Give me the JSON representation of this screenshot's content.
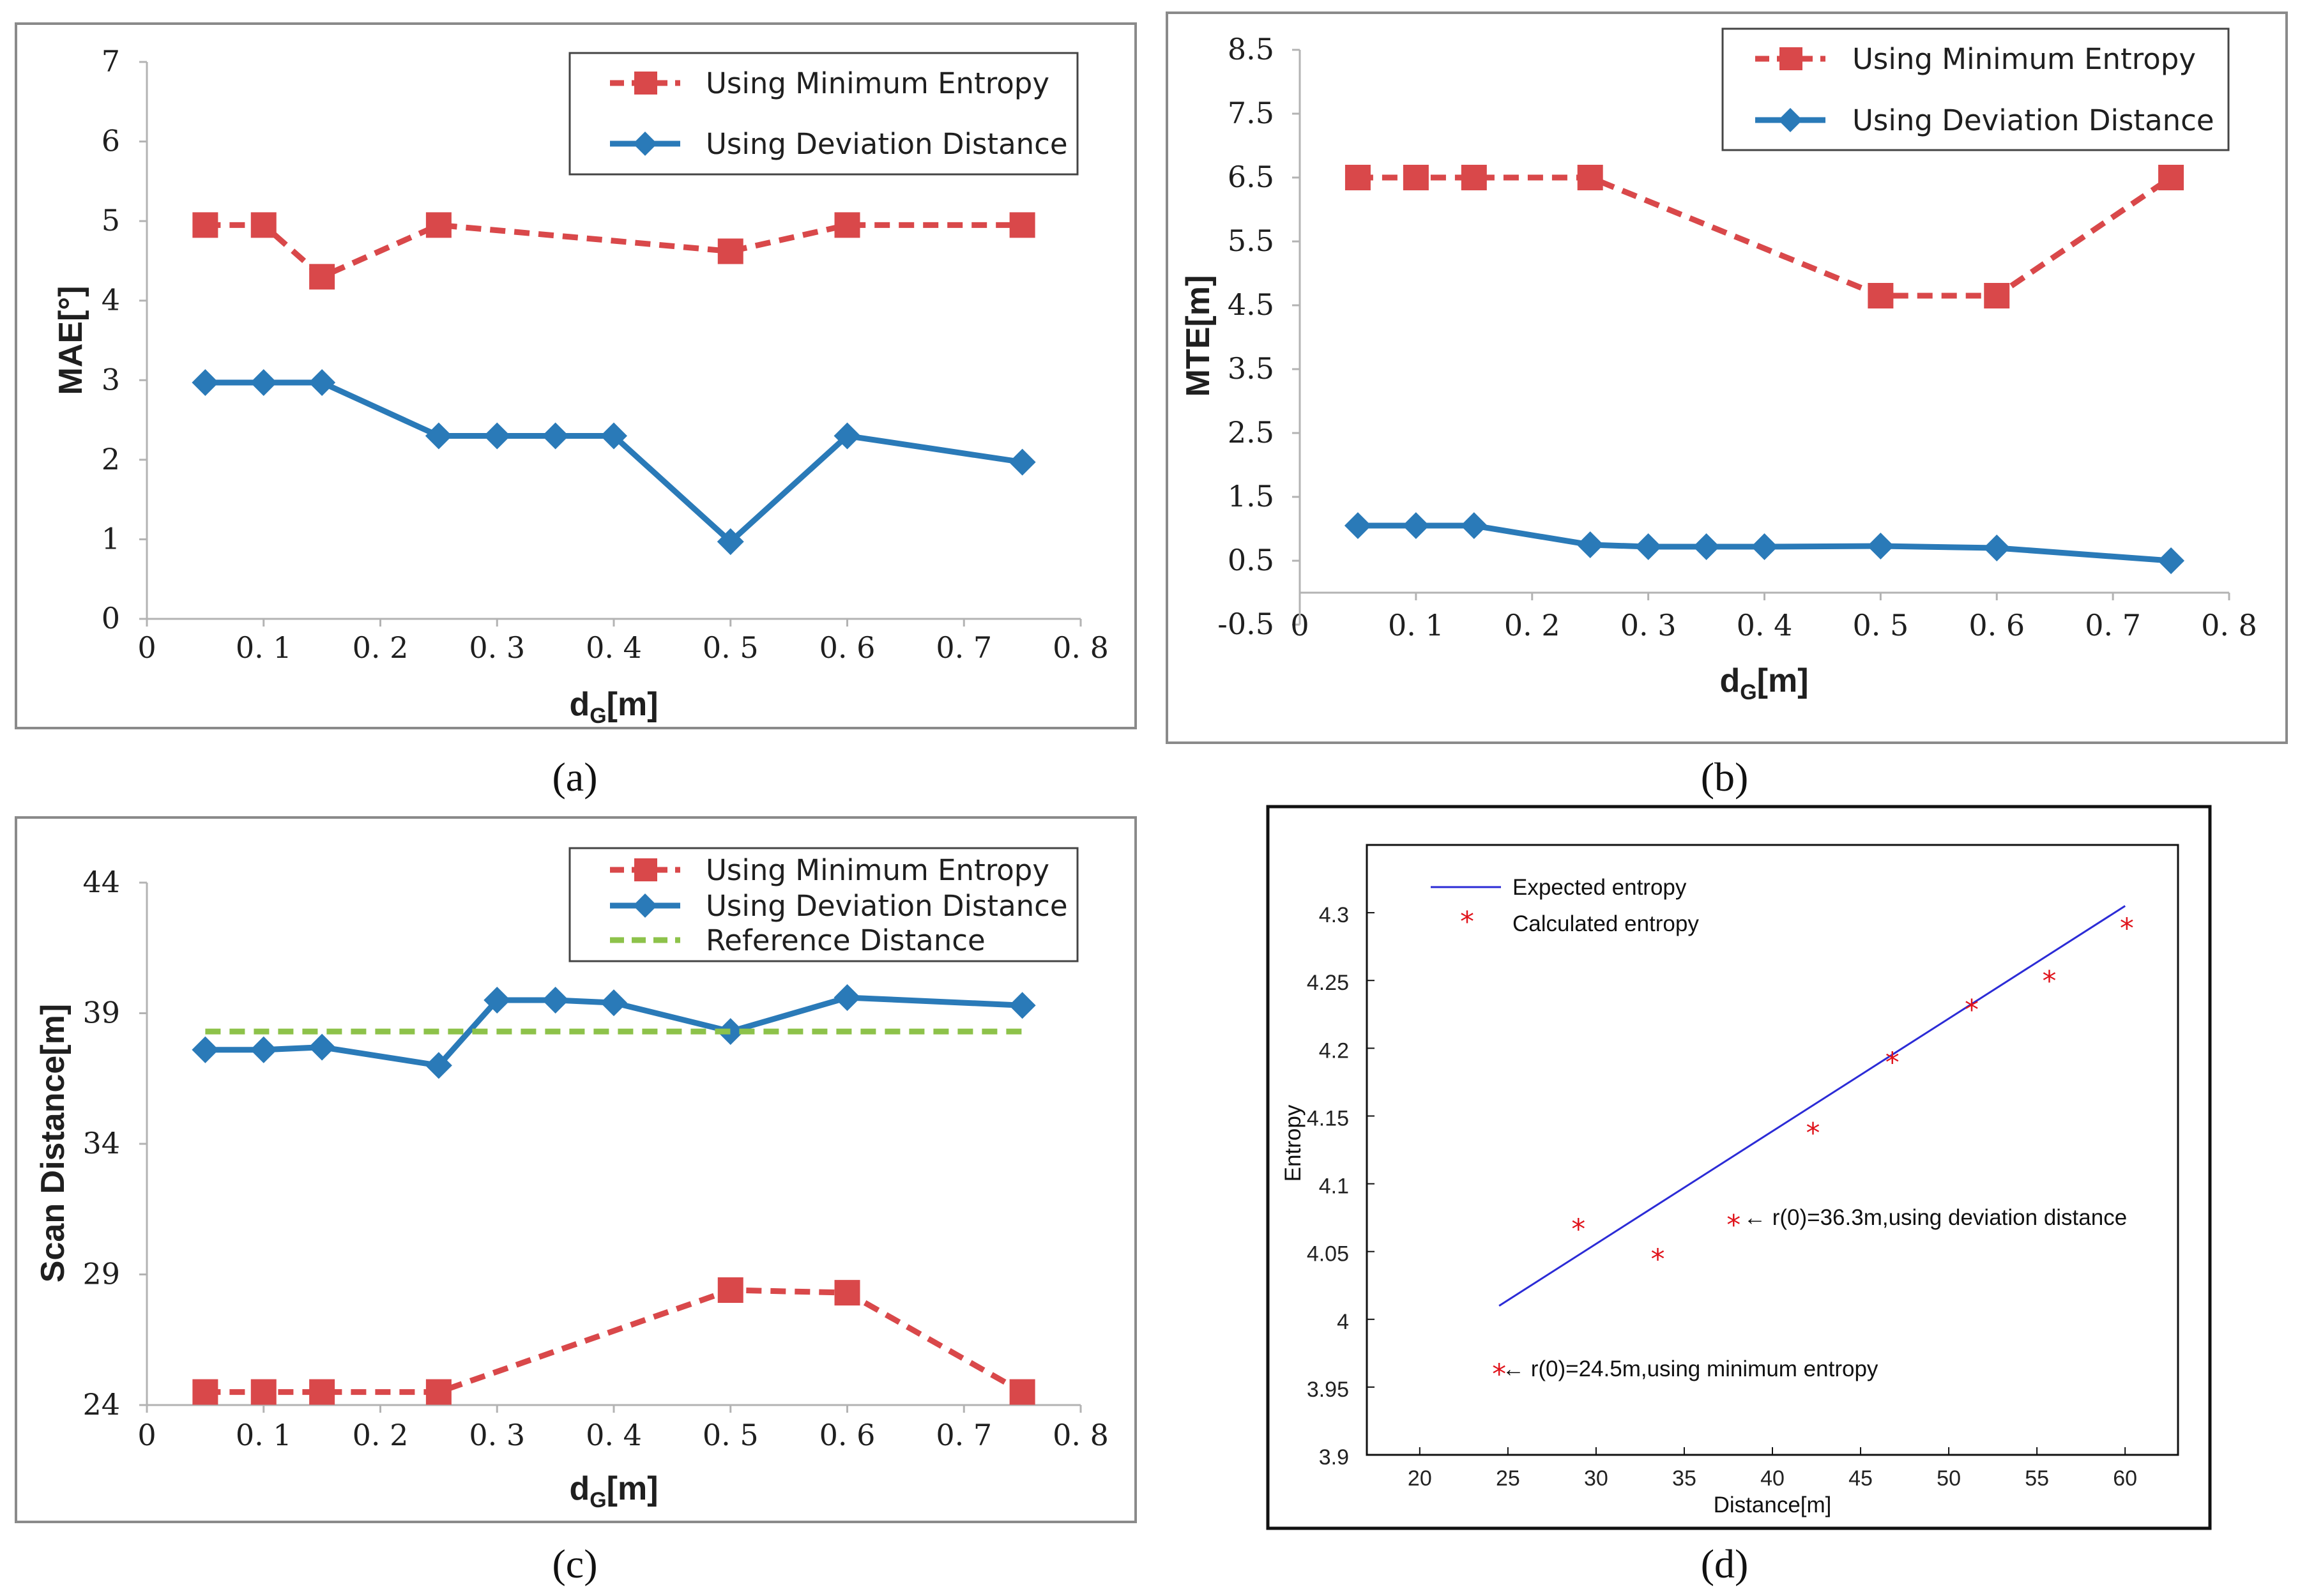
{
  "colors": {
    "min_entropy": "#d9484a",
    "deviation": "#2a7ab8",
    "reference": "#8dc24a",
    "expected": "#2b2bd6",
    "calculated": "#e0141c"
  },
  "panel_labels": [
    "(a)",
    "(b)",
    "(c)",
    "(d)"
  ],
  "chart_data": [
    {
      "type": "line",
      "xlabel": "dG[m]",
      "xlabel_main": "d",
      "xlabel_sub": "G",
      "xlabel_tail": "[m]",
      "ylabel": "MAE[°]",
      "xlim": [
        0,
        0.8
      ],
      "ylim": [
        0,
        7
      ],
      "x_ticks": [
        0,
        0.1,
        0.2,
        0.3,
        0.4,
        0.5,
        0.6,
        0.7,
        0.8
      ],
      "x_tick_labels": [
        "0",
        "0. 1",
        "0. 2",
        "0. 3",
        "0. 4",
        "0. 5",
        "0. 6",
        "0. 7",
        "0. 8"
      ],
      "y_ticks": [
        0,
        1,
        2,
        3,
        4,
        5,
        6,
        7
      ],
      "y_tick_labels": [
        "0",
        "1",
        "2",
        "3",
        "4",
        "5",
        "6",
        "7"
      ],
      "series": [
        {
          "name": "Using Minimum Entropy",
          "style": "dashed-square",
          "x": [
            0.05,
            0.1,
            0.15,
            0.25,
            0.5,
            0.6,
            0.75
          ],
          "values": [
            4.95,
            4.95,
            4.3,
            4.95,
            4.62,
            4.95,
            4.95
          ]
        },
        {
          "name": "Using Deviation Distance",
          "style": "solid-diamond",
          "x": [
            0.05,
            0.1,
            0.15,
            0.25,
            0.3,
            0.35,
            0.4,
            0.5,
            0.6,
            0.75
          ],
          "values": [
            2.97,
            2.97,
            2.97,
            2.3,
            2.3,
            2.3,
            2.3,
            0.97,
            2.3,
            1.97
          ]
        }
      ],
      "legend": [
        "Using Minimum Entropy",
        "Using Deviation Distance"
      ]
    },
    {
      "type": "line",
      "xlabel": "dG[m]",
      "xlabel_main": "d",
      "xlabel_sub": "G",
      "xlabel_tail": "[m]",
      "ylabel": "MTE[m]",
      "xlim": [
        0,
        0.8
      ],
      "ylim": [
        -0.5,
        8.5
      ],
      "x_ticks": [
        0,
        0.1,
        0.2,
        0.3,
        0.4,
        0.5,
        0.6,
        0.7,
        0.8
      ],
      "x_tick_labels": [
        "0",
        "0. 1",
        "0. 2",
        "0. 3",
        "0. 4",
        "0. 5",
        "0. 6",
        "0. 7",
        "0. 8"
      ],
      "y_ticks": [
        -0.5,
        0.5,
        1.5,
        2.5,
        3.5,
        4.5,
        5.5,
        6.5,
        7.5,
        8.5
      ],
      "y_tick_labels": [
        "-0.5",
        "0.5",
        "1.5",
        "2.5",
        "3.5",
        "4.5",
        "5.5",
        "6.5",
        "7.5",
        "8.5"
      ],
      "series": [
        {
          "name": "Using Minimum Entropy",
          "style": "dashed-square",
          "x": [
            0.05,
            0.1,
            0.15,
            0.25,
            0.5,
            0.6,
            0.75
          ],
          "values": [
            6.5,
            6.5,
            6.5,
            6.5,
            4.65,
            4.65,
            6.5
          ]
        },
        {
          "name": "Using Deviation Distance",
          "style": "solid-diamond",
          "x": [
            0.05,
            0.1,
            0.15,
            0.25,
            0.3,
            0.35,
            0.4,
            0.5,
            0.6,
            0.75
          ],
          "values": [
            1.05,
            1.05,
            1.05,
            0.75,
            0.72,
            0.72,
            0.72,
            0.73,
            0.7,
            0.5
          ]
        }
      ],
      "legend": [
        "Using Minimum Entropy",
        "Using Deviation Distance"
      ]
    },
    {
      "type": "line",
      "xlabel": "dG[m]",
      "xlabel_main": "d",
      "xlabel_sub": "G",
      "xlabel_tail": "[m]",
      "ylabel": "Scan Distance[m]",
      "xlim": [
        0,
        0.8
      ],
      "ylim": [
        24,
        44
      ],
      "x_ticks": [
        0,
        0.1,
        0.2,
        0.3,
        0.4,
        0.5,
        0.6,
        0.7,
        0.8
      ],
      "x_tick_labels": [
        "0",
        "0. 1",
        "0. 2",
        "0. 3",
        "0. 4",
        "0. 5",
        "0. 6",
        "0. 7",
        "0. 8"
      ],
      "y_ticks": [
        24,
        29,
        34,
        39,
        44
      ],
      "y_tick_labels": [
        "24",
        "29",
        "34",
        "39",
        "44"
      ],
      "series": [
        {
          "name": "Using Minimum Entropy",
          "style": "dashed-square",
          "x": [
            0.05,
            0.1,
            0.15,
            0.25,
            0.5,
            0.6,
            0.75
          ],
          "values": [
            24.5,
            24.5,
            24.5,
            24.5,
            28.4,
            28.3,
            24.5
          ]
        },
        {
          "name": "Using Deviation Distance",
          "style": "solid-diamond",
          "x": [
            0.05,
            0.1,
            0.15,
            0.25,
            0.3,
            0.35,
            0.4,
            0.5,
            0.6,
            0.75
          ],
          "values": [
            37.6,
            37.6,
            37.7,
            37.0,
            39.5,
            39.5,
            39.4,
            38.3,
            39.6,
            39.3
          ]
        },
        {
          "name": "Reference Distance",
          "style": "dashed-line",
          "x": [
            0.05,
            0.75
          ],
          "values": [
            38.3,
            38.3
          ]
        }
      ],
      "legend": [
        "Using Minimum Entropy",
        "Using Deviation Distance",
        "Reference Distance"
      ]
    },
    {
      "type": "scatter",
      "xlabel": "Distance[m]",
      "ylabel": "Entropy",
      "xlim": [
        17,
        63
      ],
      "ylim": [
        3.9,
        4.35
      ],
      "x_ticks": [
        20,
        25,
        30,
        35,
        40,
        45,
        50,
        55,
        60
      ],
      "x_tick_labels": [
        "20",
        "25",
        "30",
        "35",
        "40",
        "45",
        "50",
        "55",
        "60"
      ],
      "y_ticks": [
        3.9,
        3.95,
        4.0,
        4.05,
        4.1,
        4.15,
        4.2,
        4.25,
        4.3
      ],
      "y_tick_labels": [
        "3.9",
        "3.95",
        "4",
        "4.05",
        "4.1",
        "4.15",
        "4.2",
        "4.25",
        "4.3"
      ],
      "series": [
        {
          "name": "Expected entropy",
          "style": "line",
          "x": [
            24.5,
            60
          ],
          "values": [
            4.01,
            4.305
          ]
        },
        {
          "name": "Calculated entropy",
          "style": "star",
          "x": [
            24.5,
            29,
            33.5,
            37.8,
            42.3,
            46.8,
            51.3,
            55.7,
            60.1
          ],
          "values": [
            3.96,
            4.067,
            4.045,
            4.07,
            4.138,
            4.19,
            4.229,
            4.25,
            4.289
          ]
        }
      ],
      "legend": [
        "Expected entropy",
        "Calculated entropy"
      ],
      "annotations": [
        "← r(0)=36.3m,using deviation distance",
        "← r(0)=24.5m,using minimum entropy"
      ]
    }
  ]
}
